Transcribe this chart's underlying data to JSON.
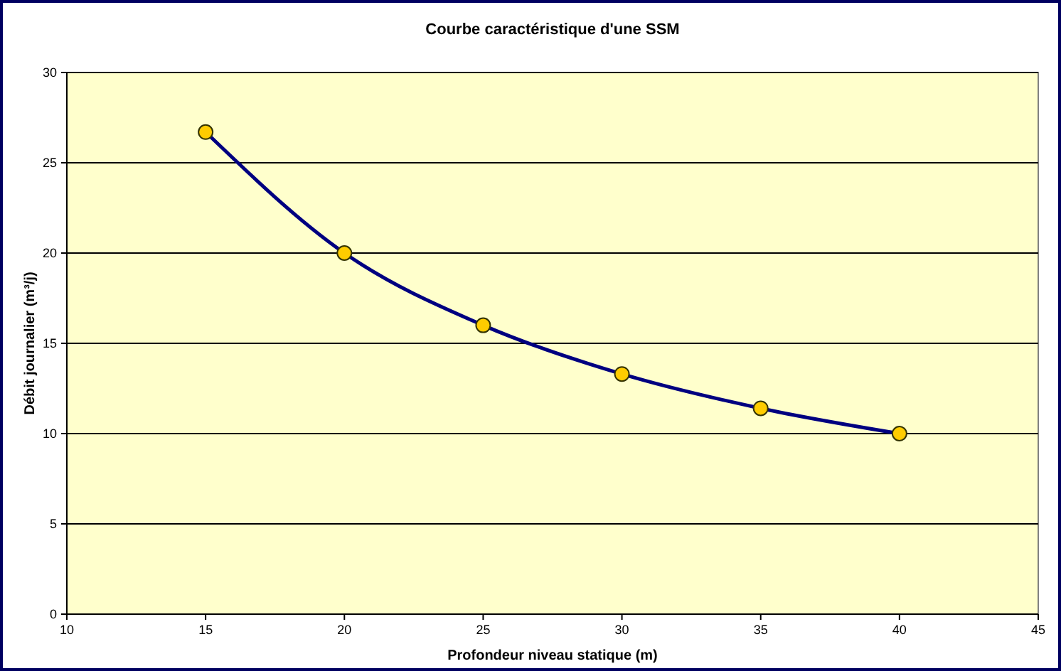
{
  "chart_data": {
    "type": "line",
    "title": "Courbe caractéristique d'une SSM",
    "xlabel": "Profondeur niveau statique (m)",
    "ylabel": "Débit journalier (m³/j)",
    "x": [
      15,
      20,
      25,
      30,
      35,
      40
    ],
    "series": [
      {
        "color": "#000080",
        "values": [
          26.7,
          20,
          16,
          13.3,
          11.4,
          10
        ]
      }
    ],
    "xlim": [
      10,
      45
    ],
    "xticks": [
      10,
      15,
      20,
      25,
      30,
      35,
      40,
      45
    ],
    "ylim": [
      0,
      30
    ],
    "yticks": [
      0,
      5,
      10,
      15,
      20,
      25,
      30
    ],
    "grid": "y",
    "marker": "circle",
    "line_style": "solid"
  }
}
